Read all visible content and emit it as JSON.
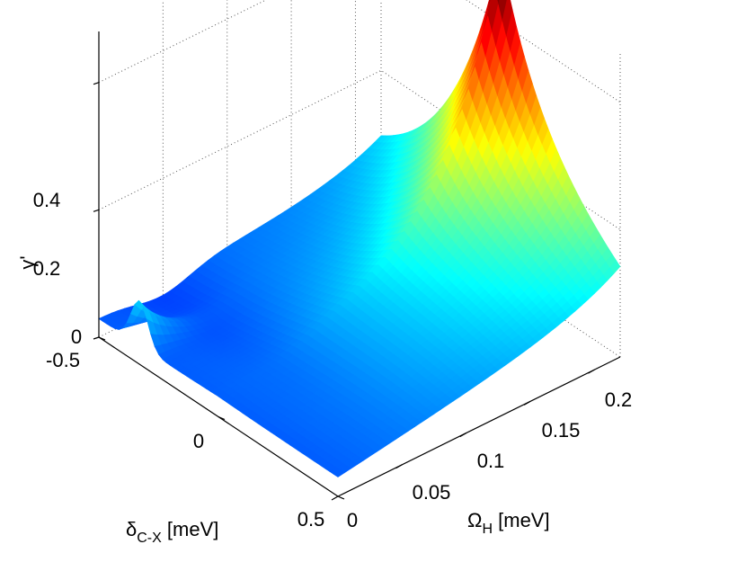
{
  "chart_data": {
    "type": "surface",
    "title": "",
    "xlabel": {
      "main": "Ω",
      "sub": "H",
      "unit": " [meV]"
    },
    "ylabel": {
      "main": "δ",
      "sub": "C-X",
      "unit": " [meV]"
    },
    "zlabel": "γ'",
    "xlim": [
      0,
      0.22
    ],
    "ylim": [
      -0.5,
      0.5
    ],
    "zlim": [
      0,
      0.48
    ],
    "xticks": [
      0,
      0.05,
      0.1,
      0.15,
      0.2
    ],
    "xtick_labels": [
      "0",
      "0.05",
      "0.1",
      "0.15",
      "0.2"
    ],
    "yticks": [
      -0.5,
      0,
      0.5
    ],
    "ytick_labels": [
      "-0.5",
      "0",
      "0.5"
    ],
    "zticks": [
      0,
      0.2,
      0.4
    ],
    "ztick_labels": [
      "0",
      "0.2",
      "0.4"
    ],
    "grid": true,
    "colormap": "jet",
    "peak": {
      "omega_h": 0.22,
      "delta_cx": 0.0,
      "gamma": 0.46
    },
    "ridge_peak": {
      "omega_h": 0.0,
      "delta_cx": -0.33,
      "gamma": 0.12
    },
    "baseline_gamma": 0.05,
    "colors": {
      "low": "#0000a0",
      "mid": "#00ff80",
      "high": "#8b0000"
    }
  }
}
